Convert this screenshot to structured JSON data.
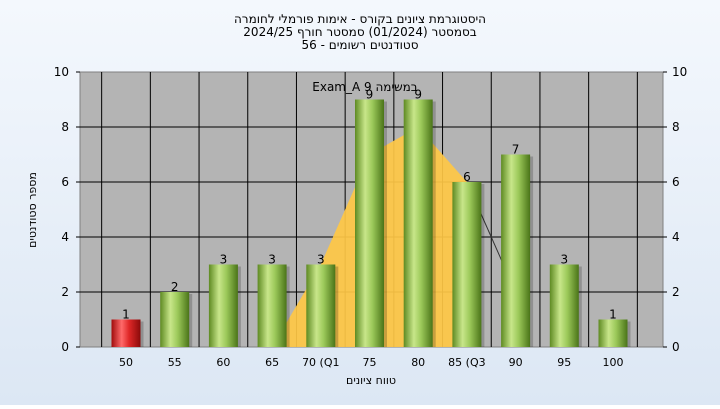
{
  "chart_data": {
    "type": "bar",
    "title_lines": [
      "היסטוגרמת ציונים בקורס - אימות פורמלי לחומרה",
      "בסמסטר  (01/2024)  סמסטר חורף 2024/25",
      "סטודנטים רשומים - 56"
    ],
    "xlabel": "טווח ציונים",
    "ylabel": "מספר סטודנטים",
    "categories": [
      "50",
      "55",
      "60",
      "65",
      "70 (Q1",
      "75",
      "80",
      "85 (Q3",
      "90",
      "95",
      "100"
    ],
    "values": [
      1,
      2,
      3,
      3,
      3,
      9,
      9,
      6,
      7,
      3,
      1
    ],
    "data_labels": [
      "1",
      "2",
      "3",
      "3",
      "3",
      "9",
      "9",
      "6",
      "7",
      "3",
      "1"
    ],
    "ylim": [
      0,
      10
    ],
    "yticks": [
      "0",
      "2",
      "4",
      "6",
      "8",
      "10"
    ],
    "grid": true,
    "annotation": "Exam_A במשימה 9",
    "distribution_polygon": {
      "x": [
        "65",
        "70 (Q1",
        "75",
        "80",
        "85 (Q3"
      ],
      "y": [
        0,
        3,
        7,
        8,
        6
      ]
    },
    "median_line": {
      "x": [
        "85 (Q3",
        "90"
      ],
      "y": [
        6,
        2
      ]
    },
    "colors": {
      "bar": "#8fc04a",
      "bar_low": "#d42020",
      "area": "#ffc845",
      "plot_bg": "#b4b4b4",
      "page_bg": "#e8eff8"
    }
  }
}
